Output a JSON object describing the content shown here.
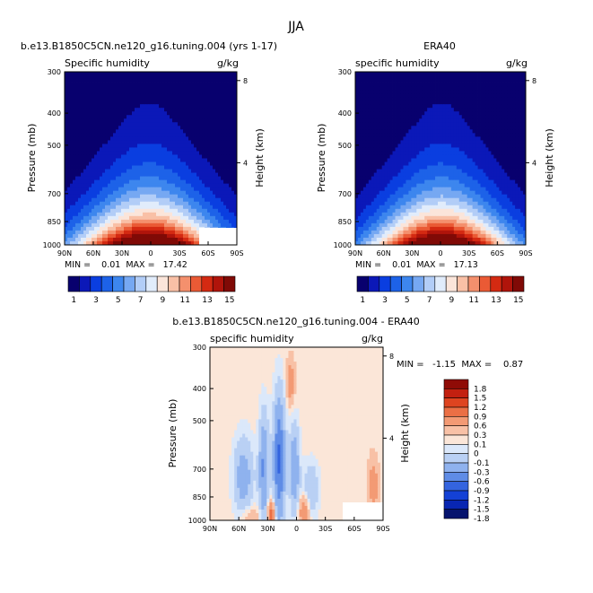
{
  "figure_title": "JJA",
  "chart_data": [
    {
      "type": "heatmap",
      "title": "b.e13.B1850C5CN.ne120_g16.tuning.004 (yrs 1-17)",
      "left_label": "Specific humidity",
      "right_label": "g/kg",
      "xlabel": "",
      "ylabel": "Pressure (mb)",
      "y2label": "Height (km)",
      "xticks": [
        "90N",
        "60N",
        "30N",
        "0",
        "30S",
        "60S",
        "90S"
      ],
      "yticks": [
        "300",
        "400",
        "500",
        "700",
        "850",
        "1000"
      ],
      "y2ticks": [
        "8",
        "4"
      ],
      "xlim": [
        90,
        -90
      ],
      "ylim": [
        1000,
        300
      ],
      "stats": "MIN =    0.01  MAX =   17.42",
      "min": 0.01,
      "max": 17.42,
      "field": "model",
      "colorbar_ticks": [
        "1",
        "3",
        "5",
        "7",
        "9",
        "11",
        "13",
        "15"
      ],
      "levels": [
        1,
        2,
        3,
        4,
        5,
        6,
        7,
        8,
        9,
        10,
        11,
        12,
        13,
        14,
        15
      ]
    },
    {
      "type": "heatmap",
      "title": "ERA40",
      "left_label": "specific humidity",
      "right_label": "g/kg",
      "xlabel": "",
      "ylabel": "Pressure (mb)",
      "y2label": "Height (km)",
      "xticks": [
        "90N",
        "60N",
        "30N",
        "0",
        "30S",
        "60S",
        "90S"
      ],
      "yticks": [
        "300",
        "400",
        "500",
        "700",
        "850",
        "1000"
      ],
      "y2ticks": [
        "8",
        "4"
      ],
      "xlim": [
        90,
        -90
      ],
      "ylim": [
        1000,
        300
      ],
      "stats": "MIN =    0.01  MAX =   17.13",
      "min": 0.01,
      "max": 17.13,
      "field": "obs",
      "colorbar_ticks": [
        "1",
        "3",
        "5",
        "7",
        "9",
        "11",
        "13",
        "15"
      ],
      "levels": [
        1,
        2,
        3,
        4,
        5,
        6,
        7,
        8,
        9,
        10,
        11,
        12,
        13,
        14,
        15
      ]
    },
    {
      "type": "heatmap",
      "title": "b.e13.B1850C5CN.ne120_g16.tuning.004 - ERA40",
      "left_label": "specific humidity",
      "right_label": "g/kg",
      "xlabel": "",
      "ylabel": "Pressure (mb)",
      "y2label": "Height (km)",
      "xticks": [
        "90N",
        "60N",
        "30N",
        "0",
        "30S",
        "60S",
        "90S"
      ],
      "yticks": [
        "300",
        "400",
        "500",
        "700",
        "850",
        "1000"
      ],
      "y2ticks": [
        "8",
        "4"
      ],
      "xlim": [
        90,
        -90
      ],
      "ylim": [
        1000,
        300
      ],
      "stats": "MIN =   -1.15  MAX =    0.87",
      "min": -1.15,
      "max": 0.87,
      "field": "diff",
      "colorbar_ticks": [
        "1.8",
        "1.5",
        "1.2",
        "0.9",
        "0.6",
        "0.3",
        "0.1",
        "0",
        "-0.1",
        "-0.3",
        "-0.6",
        "-0.9",
        "-1.2",
        "-1.5",
        "-1.8"
      ],
      "levels": [
        1.8,
        1.5,
        1.2,
        0.9,
        0.6,
        0.3,
        0.1,
        0,
        -0.1,
        -0.3,
        -0.6,
        -0.9,
        -1.2,
        -1.5,
        -1.8
      ]
    }
  ],
  "colors": {
    "abs_scale": [
      "#08006e",
      "#0b18b8",
      "#0a3ee0",
      "#1d62e8",
      "#3d86ee",
      "#76a8f2",
      "#b2cdf7",
      "#e1ecfb",
      "#fbe5da",
      "#f9c0a6",
      "#f4906d",
      "#ea5a35",
      "#d42a12",
      "#b0140b",
      "#800a06"
    ],
    "diff_neg": [
      "#dbe8fa",
      "#b9d0f4",
      "#8fb2ee",
      "#5f8ce6",
      "#3464df",
      "#1441d6",
      "#0826b2",
      "#06146e"
    ],
    "diff_pos": [
      "#fbe6d8",
      "#f8c1a6",
      "#f39a74",
      "#eb6f45",
      "#de4420",
      "#c32010",
      "#8f0b06"
    ],
    "masked": "#ffffff"
  }
}
